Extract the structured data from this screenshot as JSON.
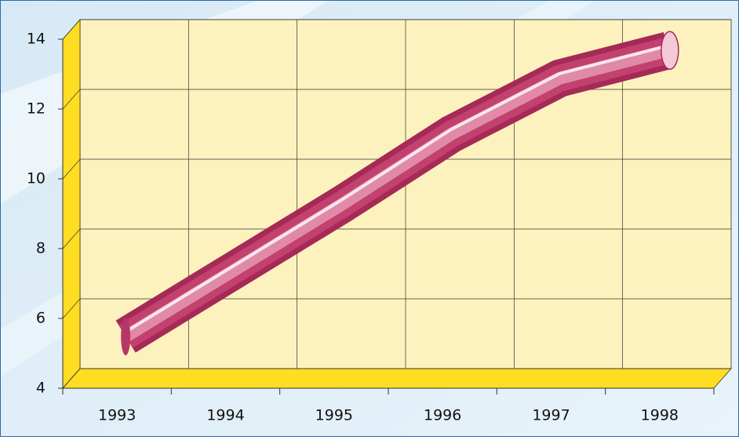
{
  "chart_data": {
    "type": "line3d",
    "categories": [
      "1993",
      "1994",
      "1995",
      "1996",
      "1997",
      "1998"
    ],
    "values": [
      5.2,
      7.1,
      9.0,
      11.0,
      12.6,
      13.4
    ],
    "color": "#c2416e",
    "ylim": [
      4,
      14
    ],
    "yticks": [
      4,
      6,
      8,
      10,
      12,
      14
    ],
    "grid": true
  }
}
